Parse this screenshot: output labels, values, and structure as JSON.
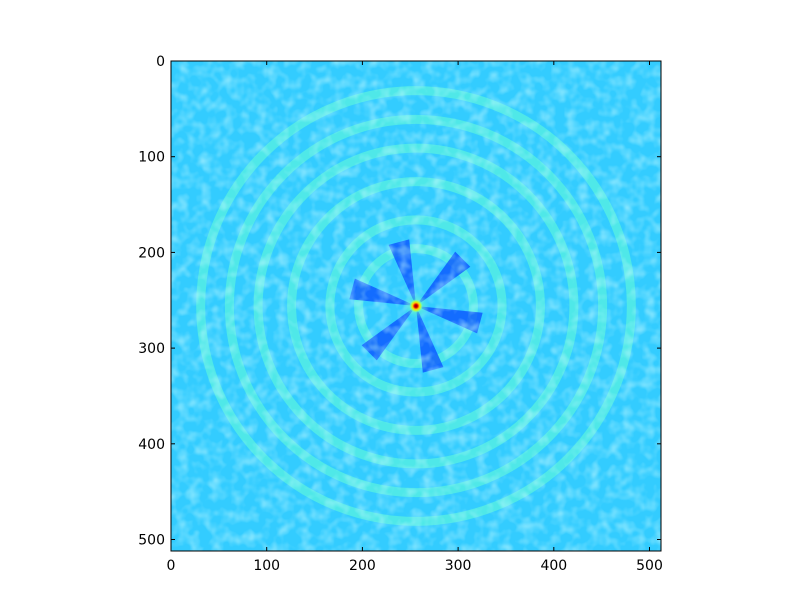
{
  "chart_data": {
    "type": "heatmap",
    "title": "",
    "xlabel": "",
    "ylabel": "",
    "xlim": [
      0,
      512
    ],
    "ylim": [
      512,
      0
    ],
    "x_ticks": [
      0,
      100,
      200,
      300,
      400,
      500
    ],
    "y_ticks": [
      0,
      100,
      200,
      300,
      400,
      500
    ],
    "x_tick_labels": [
      "0",
      "100",
      "200",
      "300",
      "400",
      "500"
    ],
    "y_tick_labels": [
      "0",
      "100",
      "200",
      "300",
      "400",
      "500"
    ],
    "colormap": "jet",
    "grid": false,
    "legend": "none",
    "peak": {
      "x": 256,
      "y": 256
    },
    "ring_radii": [
      60,
      90,
      130,
      165,
      195,
      225
    ],
    "spoke_angles_deg": [
      15,
      75,
      135,
      195,
      255,
      315
    ],
    "background_color": "#33ccff",
    "ring_color": "#66ffd5",
    "spoke_color": "#0a4cff",
    "peak_color": "#d40000"
  }
}
